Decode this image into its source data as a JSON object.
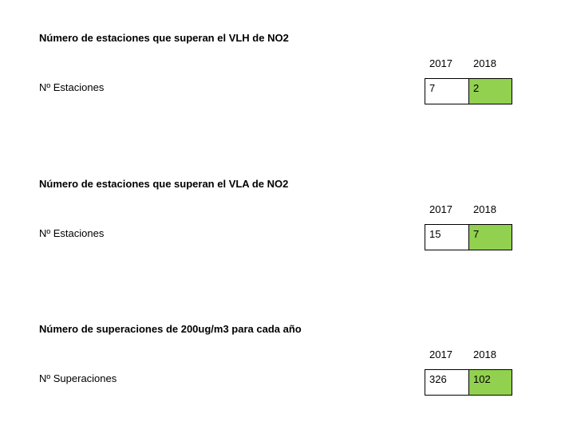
{
  "colors": {
    "highlight": "#92d050",
    "border": "#000000"
  },
  "sections": [
    {
      "title": "Número de estaciones que superan el VLH de NO2",
      "years": [
        "2017",
        "2018"
      ],
      "row_label": "Nº Estaciones",
      "values": [
        "7",
        "2"
      ]
    },
    {
      "title": "Número de estaciones que superan el VLA de NO2",
      "years": [
        "2017",
        "2018"
      ],
      "row_label": "Nº Estaciones",
      "values": [
        "15",
        "7"
      ]
    },
    {
      "title": "Número de superaciones de 200ug/m3 para cada año",
      "years": [
        "2017",
        "2018"
      ],
      "row_label": "Nº Superaciones",
      "values": [
        "326",
        "102"
      ]
    }
  ]
}
